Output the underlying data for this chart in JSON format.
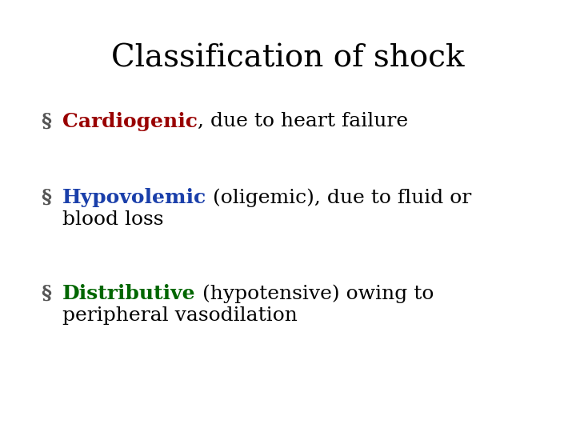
{
  "title": "Classification of shock",
  "title_fontsize": 28,
  "title_color": "#000000",
  "title_font": "DejaVu Serif",
  "background_color": "#ffffff",
  "bullet_char": "§",
  "items": [
    {
      "keyword": "Cardiogenic",
      "keyword_color": "#990000",
      "rest": ", due to heart failure",
      "rest_color": "#000000",
      "line2": null,
      "bullet_color": "#555555"
    },
    {
      "keyword": "Hypovolemic",
      "keyword_color": "#1a3faa",
      "rest": " (oligemic), due to fluid or",
      "rest_color": "#000000",
      "line2": "blood loss",
      "bullet_color": "#555555"
    },
    {
      "keyword": "Distributive",
      "keyword_color": "#006600",
      "rest": " (hypotensive) owing to",
      "rest_color": "#000000",
      "line2": "peripheral vasodilation",
      "bullet_color": "#555555"
    }
  ],
  "body_fontsize": 18,
  "body_font": "DejaVu Serif",
  "fig_width": 7.2,
  "fig_height": 5.4,
  "dpi": 100
}
